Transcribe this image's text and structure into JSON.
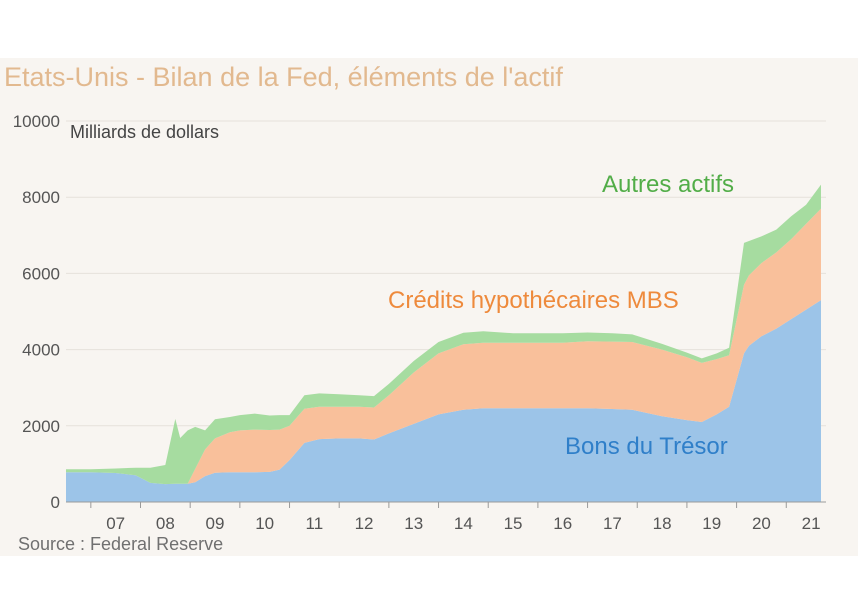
{
  "title": "Etats-Unis - Bilan de la Fed, éléments de l'actif",
  "source": "Source : Federal Reserve",
  "colors": {
    "treasury": "#9cc4e8",
    "mbs": "#f9c09b",
    "other": "#a6dca0",
    "treasury_label": "#2f7fc9",
    "mbs_label": "#ee8a3c",
    "other_label": "#52ad48",
    "background": "#f8f5f1"
  },
  "chart_data": {
    "type": "area",
    "stacked": true,
    "ylabel": "Milliards de dollars",
    "ylim": [
      0,
      10000
    ],
    "yticks": [
      "0",
      "2000",
      "4000",
      "6000",
      "8000",
      "10000"
    ],
    "xlim": [
      2006.5,
      2021.8
    ],
    "xticks": [
      {
        "value": 2007.5,
        "label": "07"
      },
      {
        "value": 2008.5,
        "label": "08"
      },
      {
        "value": 2009.5,
        "label": "09"
      },
      {
        "value": 2010.5,
        "label": "10"
      },
      {
        "value": 2011.5,
        "label": "11"
      },
      {
        "value": 2012.5,
        "label": "12"
      },
      {
        "value": 2013.5,
        "label": "13"
      },
      {
        "value": 2014.5,
        "label": "14"
      },
      {
        "value": 2015.5,
        "label": "15"
      },
      {
        "value": 2016.5,
        "label": "16"
      },
      {
        "value": 2017.5,
        "label": "17"
      },
      {
        "value": 2018.5,
        "label": "18"
      },
      {
        "value": 2019.5,
        "label": "19"
      },
      {
        "value": 2020.5,
        "label": "20"
      },
      {
        "value": 2021.5,
        "label": "21"
      }
    ],
    "grid": true,
    "x": [
      2006.5,
      2007.0,
      2007.5,
      2007.9,
      2008.2,
      2008.5,
      2008.7,
      2008.8,
      2008.95,
      2009.1,
      2009.3,
      2009.5,
      2009.8,
      2010.0,
      2010.3,
      2010.6,
      2010.8,
      2011.0,
      2011.3,
      2011.6,
      2012.0,
      2012.4,
      2012.7,
      2013.0,
      2013.5,
      2014.0,
      2014.5,
      2014.9,
      2015.5,
      2016.0,
      2016.5,
      2017.0,
      2017.5,
      2017.9,
      2018.5,
      2019.0,
      2019.3,
      2019.6,
      2019.85,
      2020.15,
      2020.25,
      2020.5,
      2020.8,
      2021.1,
      2021.4,
      2021.7
    ],
    "series": [
      {
        "name": "Bons du Trésor",
        "label_color": "#2f7fc9",
        "values": [
          780,
          780,
          760,
          700,
          500,
          470,
          480,
          480,
          480,
          520,
          680,
          770,
          780,
          780,
          780,
          790,
          850,
          1100,
          1550,
          1650,
          1670,
          1670,
          1640,
          1800,
          2050,
          2300,
          2420,
          2460,
          2460,
          2460,
          2460,
          2460,
          2440,
          2420,
          2250,
          2150,
          2100,
          2300,
          2500,
          3900,
          4100,
          4350,
          4550,
          4800,
          5050,
          5300
        ]
      },
      {
        "name": "Crédits hypothécaires MBS",
        "label_color": "#ee8a3c",
        "values": [
          0,
          0,
          0,
          0,
          0,
          0,
          0,
          0,
          0,
          350,
          700,
          900,
          1050,
          1100,
          1120,
          1100,
          1050,
          900,
          900,
          850,
          830,
          830,
          840,
          1000,
          1350,
          1600,
          1720,
          1720,
          1720,
          1720,
          1720,
          1760,
          1770,
          1780,
          1750,
          1650,
          1550,
          1450,
          1350,
          1800,
          1850,
          1920,
          2000,
          2100,
          2250,
          2400
        ]
      },
      {
        "name": "Autres actifs",
        "label_color": "#52ad48",
        "values": [
          80,
          80,
          120,
          200,
          400,
          500,
          1700,
          1200,
          1400,
          1100,
          500,
          500,
          400,
          400,
          420,
          380,
          380,
          280,
          350,
          350,
          330,
          300,
          300,
          300,
          300,
          300,
          300,
          300,
          250,
          250,
          250,
          230,
          220,
          200,
          150,
          120,
          120,
          150,
          200,
          1100,
          900,
          700,
          600,
          600,
          500,
          630
        ]
      }
    ],
    "annotations": [
      {
        "text": "Autres actifs",
        "series": "Autres actifs"
      },
      {
        "text": "Crédits hypothécaires MBS",
        "series": "Crédits hypothécaires MBS"
      },
      {
        "text": "Bons du Trésor",
        "series": "Bons du Trésor"
      }
    ]
  }
}
